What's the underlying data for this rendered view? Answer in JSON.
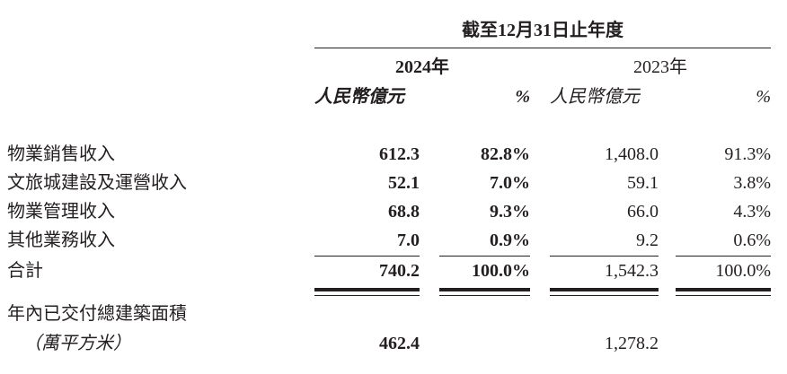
{
  "header": {
    "period": "截至12月31日止年度",
    "year_current": "2024年",
    "year_prior": "2023年",
    "unit_label": "人民幣億元",
    "percent_label": "%"
  },
  "rows": [
    {
      "label": "物業銷售收入",
      "v2024": "612.3",
      "p2024": "82.8%",
      "v2023": "1,408.0",
      "p2023": "91.3%"
    },
    {
      "label": "文旅城建設及運營收入",
      "v2024": "52.1",
      "p2024": "7.0%",
      "v2023": "59.1",
      "p2023": "3.8%"
    },
    {
      "label": "物業管理收入",
      "v2024": "68.8",
      "p2024": "9.3%",
      "v2023": "66.0",
      "p2023": "4.3%"
    },
    {
      "label": "其他業務收入",
      "v2024": "7.0",
      "p2024": "0.9%",
      "v2023": "9.2",
      "p2023": "0.6%"
    }
  ],
  "total": {
    "label": "合計",
    "v2024": "740.2",
    "p2024": "100.0%",
    "v2023": "1,542.3",
    "p2023": "100.0%"
  },
  "gfa": {
    "label": "年內已交付總建築面積",
    "unit": "（萬平方米）",
    "v2024": "462.4",
    "v2023": "1,278.2"
  }
}
